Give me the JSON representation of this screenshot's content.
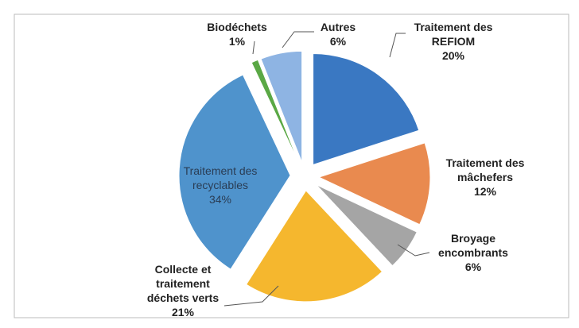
{
  "chart_data": {
    "type": "pie",
    "categories": [
      "Traitement des REFIOM",
      "Traitement des mâchefers",
      "Broyage encombrants",
      "Collecte et traitement déchets verts",
      "Traitement des recyclables",
      "Biodéchets",
      "Autres"
    ],
    "values": [
      20,
      12,
      6,
      21,
      34,
      1,
      6
    ],
    "value_labels": [
      "20%",
      "12%",
      "6%",
      "21%",
      "34%",
      "1%",
      "6%"
    ],
    "colors": [
      "#3a78c2",
      "#e98a4f",
      "#a5a5a5",
      "#f5b72e",
      "#4f93cc",
      "#5aa845",
      "#8eb4e3"
    ]
  }
}
